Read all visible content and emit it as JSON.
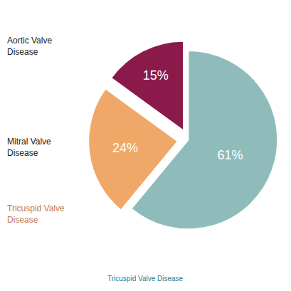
{
  "chart_data": {
    "type": "pie",
    "values": [
      61,
      24,
      15
    ],
    "value_labels": [
      "61%",
      "24%",
      "15%"
    ],
    "colors": [
      "#8fbcbb",
      "#f0a868",
      "#8b1a4a"
    ],
    "data_labels": true,
    "annotations": [
      {
        "lines": [
          "Aortic Valve",
          "Disease"
        ],
        "color": "#1a1a1a"
      },
      {
        "lines": [
          "Mitral Valve",
          "Disease"
        ],
        "color": "#1a1a1a"
      },
      {
        "lines": [
          "Tricuspid Valve",
          "Disease"
        ],
        "color": "#c07a50"
      },
      {
        "lines": [
          "Tricuspid Valve Disease"
        ],
        "color": "#2a7f8a"
      }
    ]
  }
}
